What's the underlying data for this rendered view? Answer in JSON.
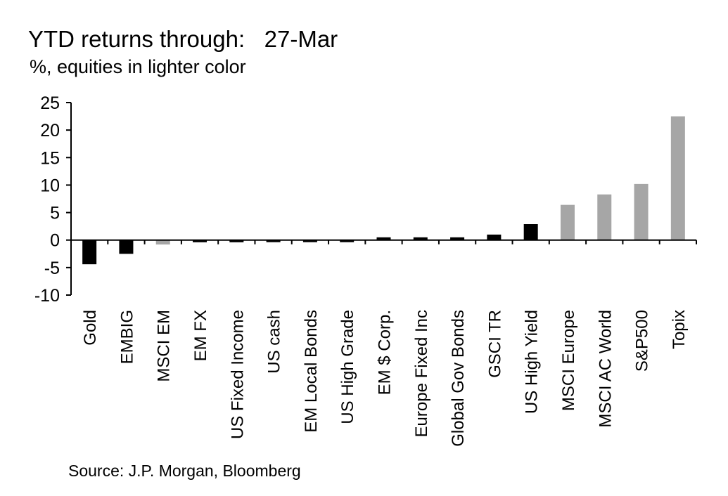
{
  "title": "YTD returns through:   27-Mar",
  "subtitle": "%, equities in lighter color",
  "source": "Source: J.P. Morgan,  Bloomberg",
  "colors": {
    "other": "#000000",
    "equity": "#a6a6a6"
  },
  "chart_data": {
    "type": "bar",
    "categories": [
      "Gold",
      "EMBIG",
      "MSCI EM",
      "EM FX",
      "US Fixed Income",
      "US cash",
      "EM Local Bonds",
      "US High Grade",
      "EM $ Corp.",
      "Europe Fixed Inc",
      "Global Gov Bonds",
      "GSCI TR",
      "US High Yield",
      "MSCI Europe",
      "MSCI AC World",
      "S&P500",
      "Topix"
    ],
    "values": [
      -4.4,
      -2.5,
      -0.8,
      -0.4,
      -0.4,
      -0.1,
      -0.1,
      -0.1,
      0.5,
      0.5,
      0.5,
      1.0,
      2.9,
      6.4,
      8.3,
      10.2,
      22.5
    ],
    "equity": [
      false,
      false,
      true,
      false,
      false,
      false,
      false,
      false,
      false,
      false,
      false,
      false,
      false,
      true,
      true,
      true,
      true
    ],
    "yticks": [
      "25",
      "20",
      "15",
      "10",
      "5",
      "0",
      "-5",
      "-10"
    ],
    "ylim": [
      -10,
      25
    ],
    "xlabel": "",
    "ylabel": ""
  }
}
